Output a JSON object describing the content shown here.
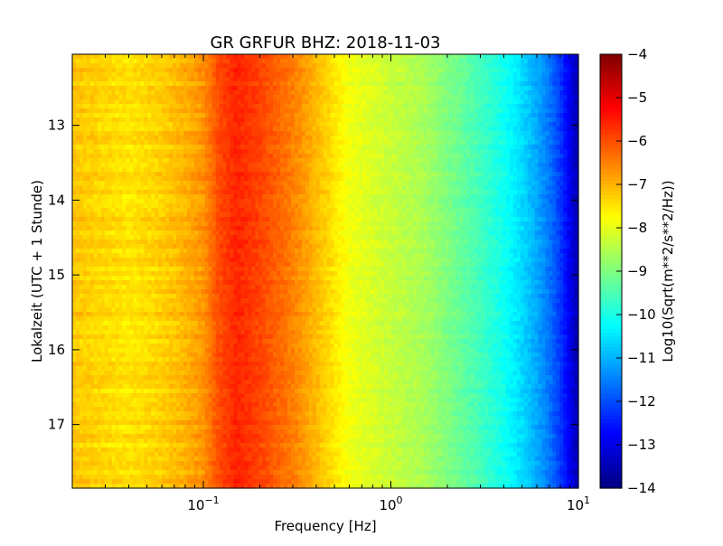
{
  "chart_data": {
    "type": "heatmap",
    "title": "GR GRFUR BHZ: 2018-11-03",
    "xlabel": "Frequency [Hz]",
    "ylabel": "Lokalzeit (UTC + 1 Stunde)",
    "x_scale": "log",
    "xlim": [
      0.02,
      10
    ],
    "x_ticks": [
      {
        "value": 0.1,
        "base": "10",
        "exp": "−1"
      },
      {
        "value": 1,
        "base": "10",
        "exp": "0"
      },
      {
        "value": 10,
        "base": "10",
        "exp": "1"
      }
    ],
    "ylim": [
      12.05,
      17.85
    ],
    "y_inverted": true,
    "y_ticks": [
      13,
      14,
      15,
      16,
      17
    ],
    "colorbar": {
      "label": "Log10(Sqrt(m**2/s**2/Hz))",
      "colormap": "jet",
      "range": [
        -14,
        -4
      ],
      "ticks": [
        -4,
        -5,
        -6,
        -7,
        -8,
        -9,
        -10,
        -11,
        -12,
        -13,
        -14
      ]
    },
    "spectrum_profile": {
      "frequency_hz": [
        0.02,
        0.04,
        0.06,
        0.08,
        0.1,
        0.12,
        0.15,
        0.2,
        0.3,
        0.45,
        0.6,
        1.0,
        1.5,
        2.0,
        3.0,
        4.0,
        5.0,
        6.0,
        7.0,
        8.0,
        9.0,
        10.0
      ],
      "value": [
        -7.2,
        -7.5,
        -7.3,
        -7.0,
        -6.7,
        -6.0,
        -5.6,
        -5.9,
        -6.5,
        -7.3,
        -7.9,
        -8.3,
        -8.6,
        -9.0,
        -9.6,
        -10.1,
        -10.6,
        -11.1,
        -11.6,
        -12.2,
        -12.9,
        -13.6
      ]
    },
    "grid": false
  }
}
